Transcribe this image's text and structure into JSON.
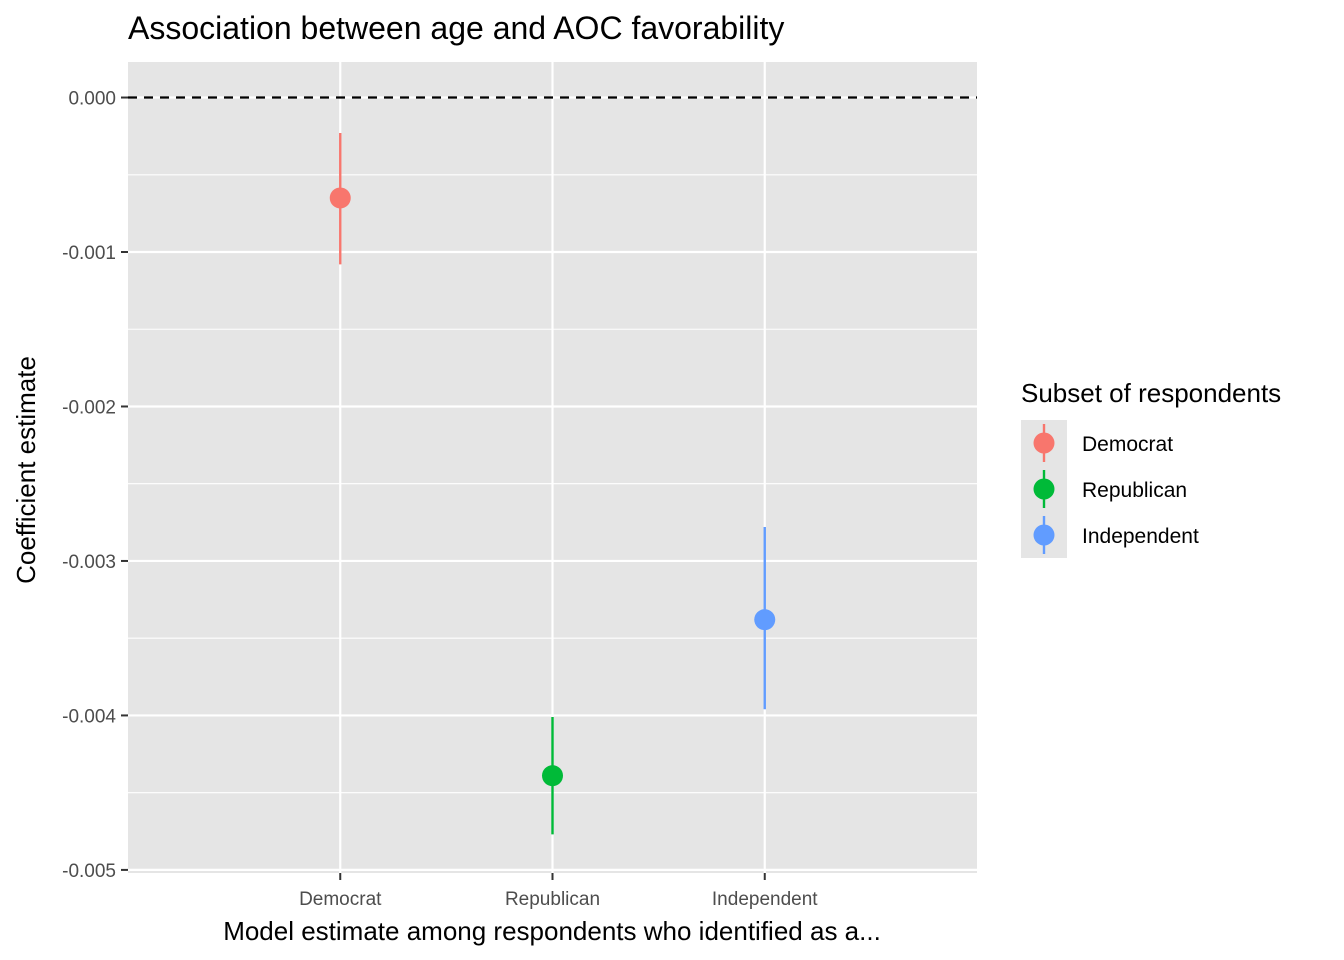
{
  "chart_data": {
    "type": "scatter",
    "geom": "pointrange",
    "title": "Association between age and AOC favorability",
    "xlabel": "Model estimate among respondents who identified as a...",
    "ylabel": "Coefficient estimate",
    "categories": [
      "Democrat",
      "Republican",
      "Independent"
    ],
    "ylim": [
      -0.00502,
      0.00023
    ],
    "yticks": [
      0.0,
      -0.001,
      -0.002,
      -0.003,
      -0.004,
      -0.005
    ],
    "ytick_labels": [
      "0.000",
      "-0.001",
      "-0.002",
      "-0.003",
      "-0.004",
      "-0.005"
    ],
    "reference_line": {
      "y": 0.0,
      "style": "dashed",
      "color": "#000000"
    },
    "grid": true,
    "panel_background": "#e5e5e5",
    "legend": {
      "title": "Subset of respondents",
      "position": "right"
    },
    "series": [
      {
        "name": "Democrat",
        "color": "#f8766d",
        "estimate": -0.00065,
        "lower": -0.00108,
        "upper": -0.00023
      },
      {
        "name": "Republican",
        "color": "#00ba38",
        "estimate": -0.00439,
        "lower": -0.00477,
        "upper": -0.00401
      },
      {
        "name": "Independent",
        "color": "#619cff",
        "estimate": -0.00338,
        "lower": -0.00396,
        "upper": -0.00278
      }
    ]
  }
}
